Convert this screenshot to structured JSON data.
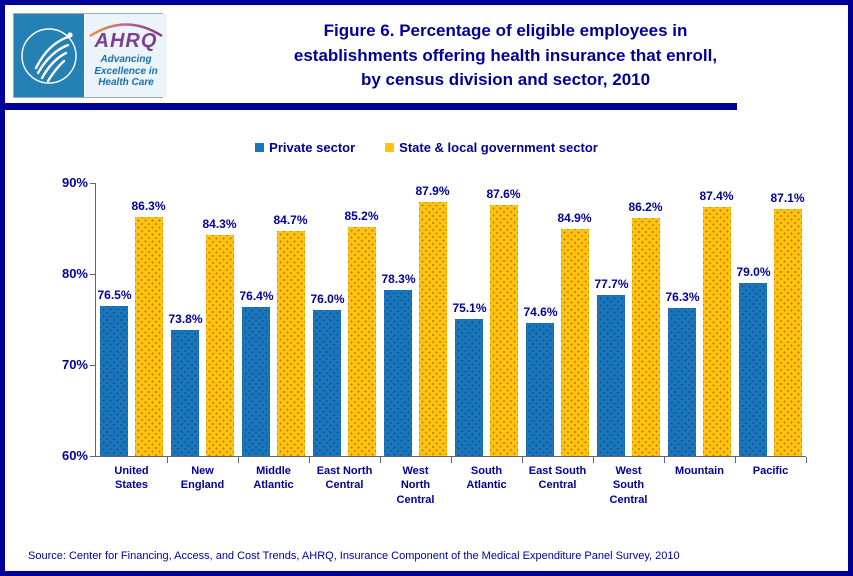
{
  "header": {
    "logo": {
      "hhs_seal": "hhs-eagle-seal",
      "ahrq_acronym": "AHRQ",
      "tagline_line1": "Advancing",
      "tagline_line2": "Excellence in",
      "tagline_line3": "Health Care"
    },
    "title_line1": "Figure 6. Percentage of eligible employees in",
    "title_line2": "establishments offering health insurance that enroll,",
    "title_line3": "by census division and sector, 2010"
  },
  "legend": {
    "items": [
      {
        "label": "Private sector",
        "color": "#1B75BC"
      },
      {
        "label": "State & local government sector",
        "color": "#FFC20E"
      }
    ]
  },
  "chart_data": {
    "type": "bar",
    "title": "Figure 6. Percentage of eligible employees in establishments offering health insurance that enroll, by census division and sector, 2010",
    "categories": [
      "United States",
      "New England",
      "Middle Atlantic",
      "East North Central",
      "West North Central",
      "South Atlantic",
      "East South Central",
      "West South Central",
      "Mountain",
      "Pacific"
    ],
    "series": [
      {
        "name": "Private sector",
        "color": "#1B75BC",
        "values": [
          76.5,
          73.8,
          76.4,
          76.0,
          78.3,
          75.1,
          74.6,
          77.7,
          76.3,
          79.0
        ]
      },
      {
        "name": "State & local government sector",
        "color": "#FFC20E",
        "values": [
          86.3,
          84.3,
          84.7,
          85.2,
          87.9,
          87.6,
          84.9,
          86.2,
          87.4,
          87.1
        ]
      }
    ],
    "xlabel": "",
    "ylabel": "",
    "ylim": [
      60,
      90
    ],
    "ytick_labels": [
      "60%",
      "70%",
      "80%",
      "90%"
    ],
    "value_suffix": "%",
    "grid": false,
    "legend_position": "top"
  },
  "colors": {
    "accent_navy": "#000099",
    "bar_private": "#1B75BC",
    "bar_government": "#FFC20E"
  },
  "footer": {
    "source": "Source: Center for Financing, Access, and Cost Trends, AHRQ, Insurance Component of the Medical Expenditure Panel Survey,  2010"
  }
}
